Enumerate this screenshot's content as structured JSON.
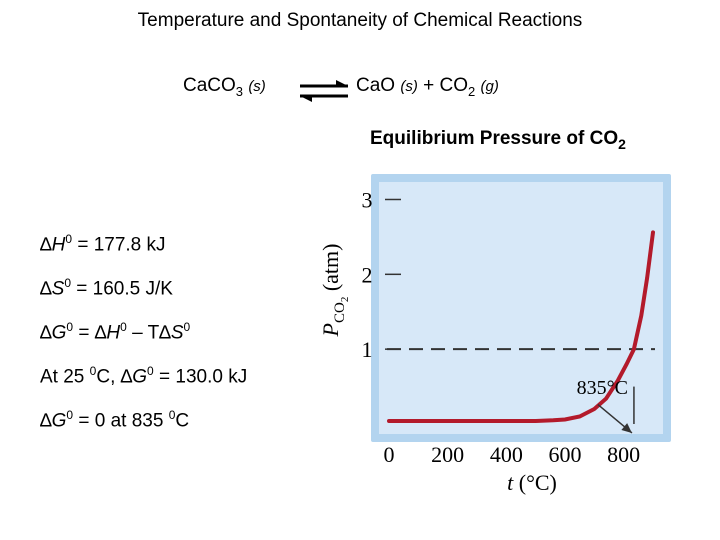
{
  "title": "Temperature and Spontaneity of Chemical Reactions",
  "reaction": {
    "reactant": "CaCO",
    "reactant_sub": "3",
    "reactant_phase": "(s)",
    "product1": "CaO",
    "product1_phase": "(s)",
    "plus": "+",
    "product2": "CO",
    "product2_sub": "2",
    "product2_phase": "(g)"
  },
  "thermo": {
    "dH": {
      "prefix": "∆",
      "sym": "H",
      "sup": "0",
      "rest": " = 177.8 kJ"
    },
    "dS": {
      "prefix": "∆",
      "sym": "S",
      "sup": "0",
      "rest": " = 160.5 J/K"
    },
    "gibbs": {
      "prefix": "∆",
      "g": "G",
      "g_sup": "0",
      "eq": " = ∆",
      "h": "H",
      "h_sup": "0",
      "minus": " – T∆",
      "s": "S",
      "s_sup": "0"
    },
    "at25": {
      "text1": "At 25 ",
      "deg": "0",
      "text2": "C, ∆",
      "g": "G",
      "g_sup": "0",
      "rest": " = 130.0 kJ"
    },
    "zero": {
      "prefix": "∆",
      "g": "G",
      "g_sup": "0",
      "mid": " = 0 at 835 ",
      "deg": "0",
      "unit": "C"
    }
  },
  "chart_data": {
    "type": "line",
    "title": "Equilibrium Pressure of CO",
    "title_sub": "2",
    "xlabel_var": "t",
    "xlabel_unit": " (°C)",
    "ylabel_var": "P",
    "ylabel_sub": "CO",
    "ylabel_subsub": "2",
    "ylabel_unit": " (atm)",
    "x_ticks": [
      "0",
      "200",
      "400",
      "600",
      "800"
    ],
    "y_ticks": [
      "1",
      "2",
      "3"
    ],
    "xlim": [
      0,
      900
    ],
    "ylim": [
      0,
      3.1
    ],
    "reference_line_y": 1,
    "annotation": {
      "label": "835°C",
      "x": 835,
      "y": 1
    },
    "colors": {
      "plot_bg": "#d7e8f8",
      "frame": "#b3d4ef",
      "curve": "#b31a2b",
      "dash": "#333333"
    },
    "series": [
      {
        "x": [
          0,
          100,
          200,
          300,
          400,
          500,
          560,
          600,
          650,
          700,
          740,
          780,
          810,
          835,
          860,
          880,
          900
        ],
        "values": [
          0.04,
          0.04,
          0.04,
          0.04,
          0.04,
          0.04,
          0.05,
          0.06,
          0.1,
          0.2,
          0.34,
          0.58,
          0.8,
          1.0,
          1.45,
          1.95,
          2.56
        ]
      }
    ]
  }
}
